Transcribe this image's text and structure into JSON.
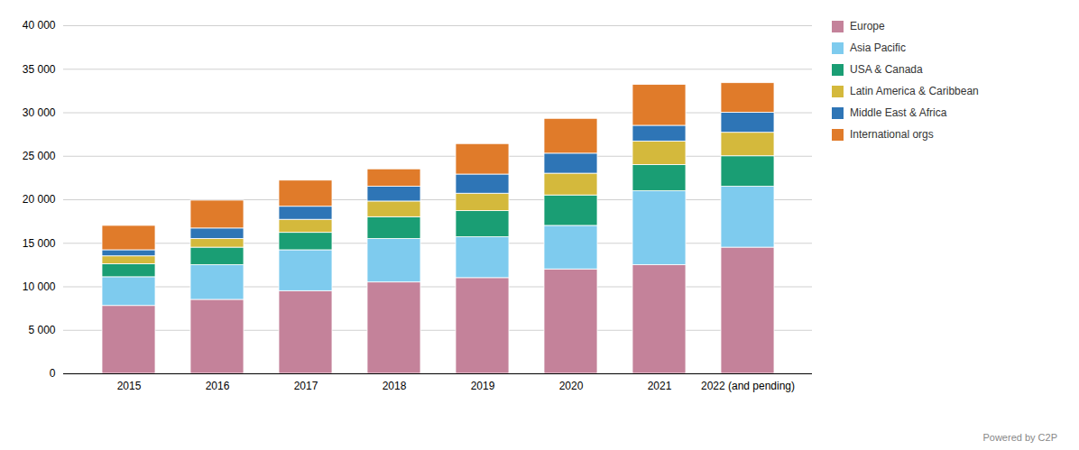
{
  "chart_data": {
    "type": "bar",
    "stacked": true,
    "categories": [
      "2015",
      "2016",
      "2017",
      "2018",
      "2019",
      "2020",
      "2021",
      "2022 (and pending)"
    ],
    "series": [
      {
        "name": "Europe",
        "color": "#c4829a",
        "values": [
          7800,
          8500,
          9500,
          10500,
          11000,
          12000,
          12500,
          14500
        ]
      },
      {
        "name": "Asia Pacific",
        "color": "#7ecbee",
        "values": [
          3300,
          4000,
          4700,
          5000,
          4700,
          5000,
          8500,
          7000
        ]
      },
      {
        "name": "USA & Canada",
        "color": "#1a9e74",
        "values": [
          1500,
          2000,
          2000,
          2500,
          3000,
          3500,
          3000,
          3500
        ]
      },
      {
        "name": "Latin America & Caribbean",
        "color": "#d4b93c",
        "values": [
          900,
          1000,
          1500,
          1800,
          2000,
          2500,
          2700,
          2700
        ]
      },
      {
        "name": "Middle East & Africa",
        "color": "#2e75b6",
        "values": [
          700,
          1200,
          1500,
          1700,
          2200,
          2300,
          1800,
          2300
        ]
      },
      {
        "name": "International orgs",
        "color": "#e07b2a",
        "values": [
          2800,
          3200,
          3000,
          2000,
          3500,
          4000,
          4700,
          3400
        ]
      }
    ],
    "ylim": [
      0,
      40000
    ],
    "yticks": [
      0,
      {
        "value": 5000,
        "label": "5 000"
      },
      {
        "value": 10000,
        "label": "10 000"
      },
      {
        "value": 15000,
        "label": "15 000"
      },
      {
        "value": 20000,
        "label": "20 000"
      },
      {
        "value": 25000,
        "label": "25 000"
      },
      {
        "value": 30000,
        "label": "30 000"
      },
      {
        "value": 35000,
        "label": "35 000"
      },
      {
        "value": 40000,
        "label": "40 000"
      }
    ],
    "grid": true,
    "legend": "right",
    "annotations": [
      "Powered by C2P"
    ]
  }
}
